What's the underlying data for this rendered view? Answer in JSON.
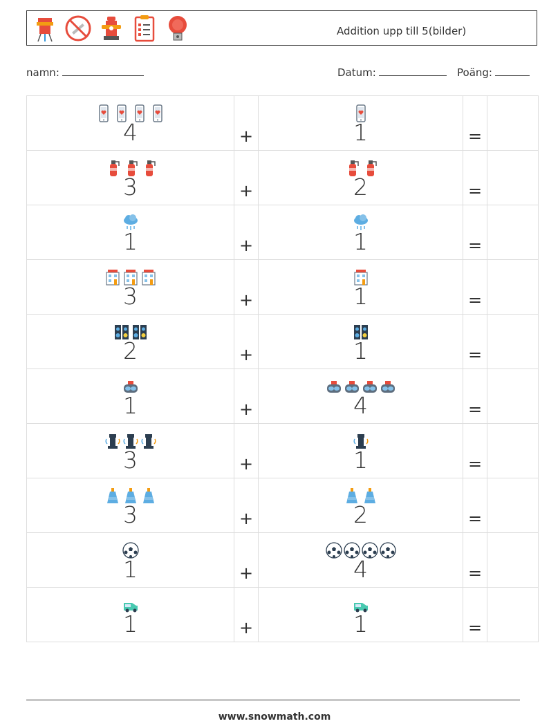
{
  "header": {
    "title": "Addition upp till 5(bilder)",
    "icons": [
      "water-tower-icon",
      "no-smoking-icon",
      "fire-hydrant-icon",
      "clipboard-checklist-icon",
      "alarm-bell-icon"
    ]
  },
  "form": {
    "name_label": "namn:",
    "date_label": "Datum:",
    "score_label": "Poäng:"
  },
  "rows": [
    {
      "a": 4,
      "b": 1,
      "icon": "phone-heart-icon"
    },
    {
      "a": 3,
      "b": 2,
      "icon": "fire-extinguisher-icon"
    },
    {
      "a": 1,
      "b": 1,
      "icon": "rain-cloud-icon"
    },
    {
      "a": 3,
      "b": 1,
      "icon": "building-icon"
    },
    {
      "a": 2,
      "b": 1,
      "icon": "speaker-icon"
    },
    {
      "a": 1,
      "b": 4,
      "icon": "vr-headset-icon"
    },
    {
      "a": 3,
      "b": 1,
      "icon": "chess-rook-icon"
    },
    {
      "a": 3,
      "b": 2,
      "icon": "bottle-icon"
    },
    {
      "a": 1,
      "b": 4,
      "icon": "soccer-ball-icon"
    },
    {
      "a": 1,
      "b": 1,
      "icon": "van-icon"
    }
  ],
  "symbols": {
    "plus": "+",
    "equals": "="
  },
  "footer": {
    "url": "www.snowmath.com"
  }
}
